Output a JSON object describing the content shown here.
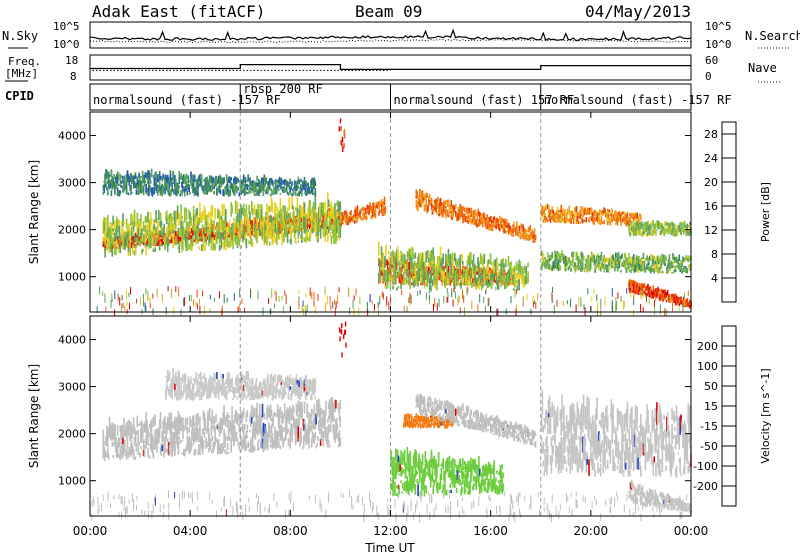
{
  "header": {
    "station": "Adak East (fitACF)",
    "beam": "Beam 09",
    "date": "04/May/2013"
  },
  "noise_panel": {
    "left_label": "N.Sky",
    "right_label": "N.Search",
    "left_ticks": [
      "10^5",
      "10^0"
    ],
    "right_ticks": [
      "10^5",
      "10^0"
    ]
  },
  "freq_panel": {
    "left_label_1": "Freq.",
    "left_label_2": "[MHz]",
    "right_label": "Nave",
    "left_ticks": [
      "18",
      "8"
    ],
    "right_ticks": [
      "60",
      "0"
    ],
    "freq_mhz": [
      [
        0,
        11
      ],
      [
        6,
        11
      ],
      [
        6,
        13
      ],
      [
        10,
        13
      ],
      [
        10,
        10.5
      ],
      [
        18,
        10.5
      ],
      [
        18,
        12.5
      ],
      [
        24,
        12.5
      ]
    ],
    "nave": [
      [
        0,
        23
      ],
      [
        12,
        23
      ],
      [
        12,
        23
      ],
      [
        24,
        23
      ]
    ],
    "freq_range": [
      5,
      18
    ],
    "nave_range": [
      0,
      60
    ]
  },
  "cpid_panel": {
    "label": "CPID",
    "segments": [
      {
        "start": 0,
        "end": 6,
        "text": "normalsound (fast) -157 RF"
      },
      {
        "start": 6,
        "end": 12,
        "text": "rbsp 200 RF"
      },
      {
        "start": 12,
        "end": 18,
        "text": "normalsound (fast) 157 RF"
      },
      {
        "start": 18,
        "end": 24,
        "text": "normalsound (fast) -157 RF"
      }
    ]
  },
  "x_axis": {
    "label": "Time UT",
    "range": [
      0,
      24
    ],
    "ticks": [
      "00:00",
      "04:00",
      "08:00",
      "12:00",
      "16:00",
      "20:00",
      "00:00"
    ],
    "tick_hours": [
      0,
      4,
      8,
      12,
      16,
      20,
      24
    ]
  },
  "chart_data": [
    {
      "type": "heatmap",
      "name": "power",
      "ylabel": "Slant Range [km]",
      "ylim": [
        250,
        4500
      ],
      "yticks": [
        1000,
        2000,
        3000,
        4000
      ],
      "colorbar_label": "Power [dB]",
      "colorbar_ticks": [
        "4",
        "8",
        "12",
        "16",
        "20",
        "24",
        "28"
      ],
      "colorbar_range": [
        0,
        30
      ],
      "colorbar_colors": [
        "#1a22e0",
        "#2455c0",
        "#2f7f58",
        "#5aa060",
        "#93c23a",
        "#e8d020",
        "#f0a020",
        "#f07010",
        "#e63a0a",
        "#e00000"
      ],
      "bands": [
        {
          "t0": 0.5,
          "t1": 10.0,
          "r0": 1550,
          "r1": 1750,
          "r0_end": 2000,
          "r1_end": 2350,
          "level": 26
        },
        {
          "t0": 0.5,
          "t1": 10.0,
          "r0": 1400,
          "r1": 2100,
          "r0_end": 1700,
          "r1_end": 2550,
          "level": 14
        },
        {
          "t0": 10.0,
          "t1": 11.8,
          "r0": 2050,
          "r1": 2300,
          "r0_end": 2300,
          "r1_end": 2600,
          "level": 22
        },
        {
          "t0": 11.5,
          "t1": 17.0,
          "r0": 800,
          "r1": 1300,
          "r0_end": 800,
          "r1_end": 1050,
          "level": 24
        },
        {
          "t0": 11.5,
          "t1": 17.5,
          "r0": 700,
          "r1": 1500,
          "r0_end": 700,
          "r1_end": 1200,
          "level": 13
        },
        {
          "t0": 13.0,
          "t1": 17.8,
          "r0": 2400,
          "r1": 2750,
          "r0_end": 1700,
          "r1_end": 1950,
          "level": 22
        },
        {
          "t0": 18.0,
          "t1": 22.0,
          "r0": 2150,
          "r1": 2450,
          "r0_end": 2050,
          "r1_end": 2300,
          "level": 21
        },
        {
          "t0": 18.0,
          "t1": 24.0,
          "r0": 1100,
          "r1": 1450,
          "r0_end": 1050,
          "r1_end": 1350,
          "level": 12
        },
        {
          "t0": 21.5,
          "t1": 24.0,
          "r0": 650,
          "r1": 900,
          "r0_end": 300,
          "r1_end": 450,
          "level": 25
        },
        {
          "t0": 0.5,
          "t1": 9.0,
          "r0": 2700,
          "r1": 3150,
          "r0_end": 2700,
          "r1_end": 3000,
          "level": 8
        },
        {
          "t0": 21.5,
          "t1": 24.0,
          "r0": 1850,
          "r1": 2100,
          "r0_end": 1850,
          "r1_end": 2100,
          "level": 13
        }
      ]
    },
    {
      "type": "heatmap",
      "name": "velocity",
      "ylabel": "Slant Range [km]",
      "ylim": [
        250,
        4500
      ],
      "yticks": [
        1000,
        2000,
        3000,
        4000
      ],
      "colorbar_label": "Velocity [m s^-1]",
      "colorbar_ticks": [
        "200",
        "100",
        "50",
        "15",
        "-15",
        "-50",
        "-100",
        "-200"
      ],
      "colorbar_colors": [
        "#2040c0",
        "#2a8a50",
        "#60c040",
        "#c8c8c0",
        "#c8c8c0",
        "#f0a020",
        "#f06010",
        "#e00000"
      ],
      "bands": [
        {
          "t0": 0.5,
          "t1": 10.0,
          "r0": 1400,
          "r1": 2100,
          "r0_end": 1700,
          "r1_end": 2550,
          "color": "#bebebc"
        },
        {
          "t0": 12.5,
          "t1": 14.5,
          "r0": 2100,
          "r1": 2350,
          "r0_end": 2100,
          "r1_end": 2300,
          "color": "#f07a10"
        },
        {
          "t0": 12.0,
          "t1": 16.5,
          "r0": 650,
          "r1": 1500,
          "r0_end": 700,
          "r1_end": 1250,
          "color": "#6ccd3c"
        },
        {
          "t0": 13.0,
          "t1": 17.8,
          "r0": 2400,
          "r1": 2800,
          "r0_end": 1700,
          "r1_end": 2000,
          "color": "#bebebc"
        },
        {
          "t0": 18.0,
          "t1": 24.0,
          "r0": 1100,
          "r1": 2450,
          "r0_end": 1050,
          "r1_end": 2300,
          "color": "#c4c4c2"
        },
        {
          "t0": 21.5,
          "t1": 24.0,
          "r0": 500,
          "r1": 900,
          "r0_end": 300,
          "r1_end": 450,
          "color": "#c4c4c2"
        },
        {
          "t0": 3.0,
          "t1": 9.0,
          "r0": 2700,
          "r1": 3200,
          "r0_end": 2700,
          "r1_end": 3100,
          "color": "#c9c9c7"
        }
      ]
    }
  ]
}
